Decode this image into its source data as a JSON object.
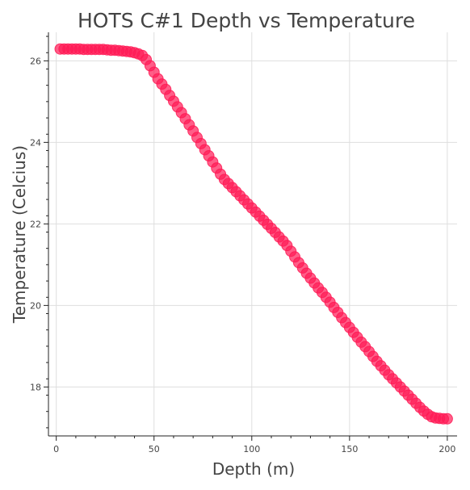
{
  "chart_data": {
    "type": "scatter",
    "title": "HOTS C#1 Depth vs Temperature",
    "xlabel": "Depth (m)",
    "ylabel": "Temperature (Celcius)",
    "xlim": [
      -4,
      205
    ],
    "ylim": [
      16.8,
      26.7
    ],
    "xticks": [
      0,
      50,
      100,
      150,
      200
    ],
    "yticks": [
      18,
      20,
      22,
      24,
      26
    ],
    "grid": true,
    "legend": "none",
    "marker_color": "#ff1a55",
    "series": [
      {
        "x": [
          2,
          4,
          6,
          8,
          10,
          12,
          14,
          16,
          18,
          20,
          22,
          24,
          26,
          28,
          30,
          32,
          34,
          36,
          38,
          40,
          42,
          44,
          46,
          48,
          50,
          52,
          54,
          56,
          58,
          60,
          62,
          64,
          66,
          68,
          70,
          72,
          74,
          76,
          78,
          80,
          82,
          84,
          86,
          88,
          90,
          92,
          94,
          96,
          98,
          100,
          102,
          104,
          106,
          108,
          110,
          112,
          114,
          116,
          118,
          120,
          122,
          124,
          126,
          128,
          130,
          132,
          134,
          136,
          138,
          140,
          142,
          144,
          146,
          148,
          150,
          152,
          154,
          156,
          158,
          160,
          162,
          164,
          166,
          168,
          170,
          172,
          174,
          176,
          178,
          180,
          182,
          184,
          186,
          188,
          190,
          192,
          194,
          196,
          198,
          200
        ],
        "y": [
          26.29,
          26.29,
          26.29,
          26.29,
          26.29,
          26.29,
          26.28,
          26.28,
          26.28,
          26.28,
          26.28,
          26.28,
          26.27,
          26.26,
          26.26,
          26.25,
          26.24,
          26.23,
          26.22,
          26.2,
          26.17,
          26.13,
          26.03,
          25.88,
          25.72,
          25.56,
          25.43,
          25.3,
          25.15,
          25.01,
          24.87,
          24.73,
          24.58,
          24.43,
          24.28,
          24.12,
          23.97,
          23.82,
          23.67,
          23.52,
          23.37,
          23.22,
          23.09,
          22.99,
          22.89,
          22.79,
          22.69,
          22.59,
          22.49,
          22.39,
          22.29,
          22.19,
          22.09,
          21.99,
          21.89,
          21.79,
          21.68,
          21.58,
          21.47,
          21.33,
          21.19,
          21.05,
          20.92,
          20.79,
          20.67,
          20.55,
          20.43,
          20.32,
          20.2,
          20.08,
          19.95,
          19.83,
          19.7,
          19.58,
          19.46,
          19.34,
          19.22,
          19.1,
          18.99,
          18.87,
          18.75,
          18.63,
          18.52,
          18.41,
          18.3,
          18.2,
          18.1,
          18.0,
          17.9,
          17.8,
          17.7,
          17.6,
          17.5,
          17.41,
          17.33,
          17.27,
          17.24,
          17.23,
          17.22,
          17.22
        ]
      }
    ]
  }
}
